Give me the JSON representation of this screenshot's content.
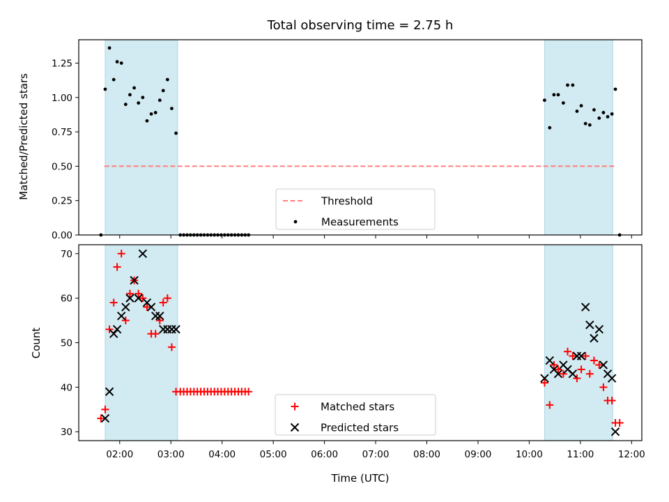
{
  "chart_data": {
    "title": "Total observing time = 2.75 h",
    "xlabel": "Time (UTC)",
    "xlim": [
      "01:12",
      "12:12"
    ],
    "x_ticks": [
      "02:00",
      "03:00",
      "04:00",
      "05:00",
      "06:00",
      "07:00",
      "08:00",
      "09:00",
      "10:00",
      "11:00",
      "12:00"
    ],
    "shaded_regions": [
      [
        "01:43",
        "03:08"
      ],
      [
        "10:18",
        "11:38"
      ]
    ],
    "shaded_color": "#add8e6",
    "panels": [
      {
        "type": "scatter",
        "ylabel": "Matched/Predicted stars",
        "ylim": [
          0,
          1.42
        ],
        "y_ticks": [
          "0.00",
          "0.25",
          "0.50",
          "0.75",
          "1.00",
          "1.25"
        ],
        "threshold": {
          "name": "Threshold",
          "value": 0.5,
          "x_range": [
            "01:42",
            "11:40"
          ],
          "color": "#ff7f7f",
          "style": "dashed"
        },
        "series": [
          {
            "name": "Measurements",
            "marker": "dot",
            "color": "#000000",
            "x": [
              "01:38",
              "01:43",
              "01:48",
              "01:53",
              "01:57",
              "02:02",
              "02:07",
              "02:12",
              "02:17",
              "02:22",
              "02:27",
              "02:32",
              "02:37",
              "02:42",
              "02:47",
              "02:51",
              "02:56",
              "03:01",
              "03:06",
              "03:11",
              "03:15",
              "03:19",
              "03:23",
              "03:27",
              "03:31",
              "03:35",
              "03:39",
              "03:43",
              "03:47",
              "03:51",
              "03:55",
              "03:59",
              "04:03",
              "04:07",
              "04:11",
              "04:15",
              "04:19",
              "04:23",
              "04:27",
              "04:31",
              "10:18",
              "10:24",
              "10:29",
              "10:34",
              "10:40",
              "10:45",
              "10:51",
              "10:56",
              "11:01",
              "11:06",
              "11:11",
              "11:16",
              "11:22",
              "11:27",
              "11:32",
              "11:37",
              "11:41",
              "11:46"
            ],
            "y": [
              0.0,
              1.06,
              1.36,
              1.13,
              1.26,
              1.25,
              0.95,
              1.02,
              1.07,
              0.96,
              1.0,
              0.83,
              0.88,
              0.89,
              0.98,
              1.05,
              1.13,
              0.92,
              0.74,
              0.0,
              0.0,
              0.0,
              0.0,
              0.0,
              0.0,
              0.0,
              0.0,
              0.0,
              0.0,
              0.0,
              0.0,
              0.0,
              0.0,
              0.0,
              0.0,
              0.0,
              0.0,
              0.0,
              0.0,
              0.0,
              0.98,
              0.78,
              1.02,
              1.02,
              0.96,
              1.09,
              1.09,
              0.9,
              0.94,
              0.81,
              0.8,
              0.91,
              0.85,
              0.89,
              0.86,
              0.88,
              1.06,
              0.0
            ]
          }
        ],
        "legend_position": "lower center"
      },
      {
        "type": "scatter",
        "ylabel": "Count",
        "ylim": [
          28,
          72
        ],
        "y_ticks": [
          "30",
          "40",
          "50",
          "60",
          "70"
        ],
        "series": [
          {
            "name": "Matched stars",
            "marker": "plus",
            "color": "#ff0000",
            "x": [
              "01:38",
              "01:43",
              "01:48",
              "01:53",
              "01:57",
              "02:02",
              "02:07",
              "02:12",
              "02:17",
              "02:22",
              "02:27",
              "02:32",
              "02:37",
              "02:42",
              "02:47",
              "02:51",
              "02:56",
              "03:01",
              "03:06",
              "03:11",
              "03:15",
              "03:19",
              "03:23",
              "03:27",
              "03:31",
              "03:35",
              "03:39",
              "03:43",
              "03:47",
              "03:51",
              "03:55",
              "03:59",
              "04:03",
              "04:07",
              "04:11",
              "04:15",
              "04:19",
              "04:23",
              "04:27",
              "04:31",
              "10:18",
              "10:24",
              "10:29",
              "10:34",
              "10:40",
              "10:45",
              "10:51",
              "10:56",
              "11:01",
              "11:06",
              "11:11",
              "11:16",
              "11:22",
              "11:27",
              "11:32",
              "11:37",
              "11:41",
              "11:46"
            ],
            "y": [
              33,
              35,
              53,
              59,
              67,
              70,
              55,
              61,
              64,
              61,
              60,
              58,
              52,
              52,
              55,
              59,
              60,
              49,
              39,
              39,
              39,
              39,
              39,
              39,
              39,
              39,
              39,
              39,
              39,
              39,
              39,
              39,
              39,
              39,
              39,
              39,
              39,
              39,
              39,
              39,
              41,
              36,
              45,
              44,
              43,
              48,
              47,
              42,
              44,
              47,
              43,
              46,
              45,
              40,
              37,
              37,
              32,
              32
            ]
          },
          {
            "name": "Predicted stars",
            "marker": "x",
            "color": "#000000",
            "x": [
              "01:43",
              "01:48",
              "01:53",
              "01:57",
              "02:02",
              "02:07",
              "02:12",
              "02:17",
              "02:22",
              "02:27",
              "02:32",
              "02:37",
              "02:42",
              "02:47",
              "02:51",
              "02:56",
              "03:01",
              "03:06",
              "10:18",
              "10:24",
              "10:29",
              "10:34",
              "10:40",
              "10:45",
              "10:51",
              "10:56",
              "11:01",
              "11:06",
              "11:11",
              "11:16",
              "11:22",
              "11:27",
              "11:32",
              "11:37",
              "11:41"
            ],
            "y": [
              33,
              39,
              52,
              53,
              56,
              58,
              60,
              64,
              60,
              70,
              59,
              58,
              56,
              56,
              53,
              53,
              53,
              53,
              42,
              46,
              44,
              43,
              45,
              44,
              43,
              47,
              47,
              58,
              54,
              51,
              53,
              45,
              43,
              42,
              30
            ]
          }
        ],
        "legend_position": "lower center"
      }
    ]
  }
}
